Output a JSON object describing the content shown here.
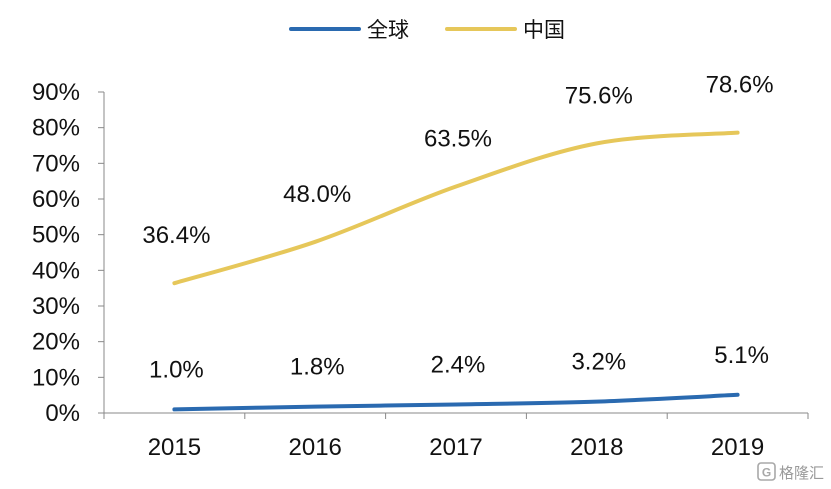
{
  "chart_data": {
    "type": "line",
    "title": "",
    "xlabel": "",
    "ylabel": "",
    "categories": [
      "2015",
      "2016",
      "2017",
      "2018",
      "2019"
    ],
    "y_ticks": [
      "0%",
      "10%",
      "20%",
      "30%",
      "40%",
      "50%",
      "60%",
      "70%",
      "80%",
      "90%"
    ],
    "ylim": [
      0,
      90
    ],
    "grid": false,
    "legend_position": "top",
    "series": [
      {
        "name": "全球",
        "color": "#2a6ab0",
        "values": [
          1.0,
          1.8,
          2.4,
          3.2,
          5.1
        ],
        "labels": [
          "1.0%",
          "1.8%",
          "2.4%",
          "3.2%",
          "5.1%"
        ]
      },
      {
        "name": "中国",
        "color": "#e6c75a",
        "values": [
          36.4,
          48.0,
          63.5,
          75.6,
          78.6
        ],
        "labels": [
          "36.4%",
          "48.0%",
          "63.5%",
          "75.6%",
          "78.6%"
        ]
      }
    ]
  },
  "watermark": {
    "text": "格隆汇",
    "icon": "gelonghui-logo-icon"
  }
}
